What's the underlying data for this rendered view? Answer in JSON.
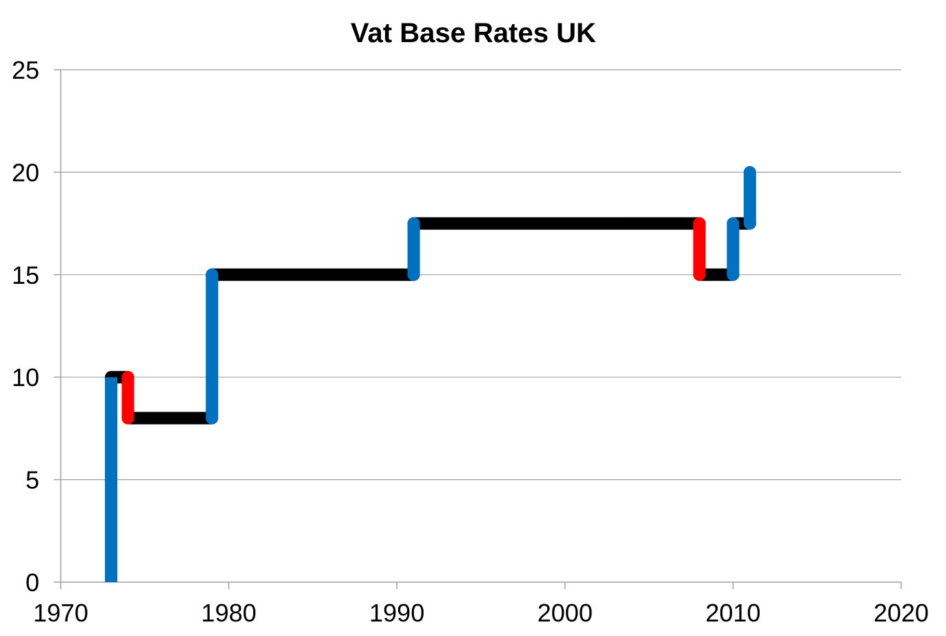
{
  "chart_data": {
    "type": "line",
    "title": "Vat Base Rates UK",
    "xlabel": "",
    "ylabel": "",
    "xlim": [
      1970,
      2020
    ],
    "ylim": [
      0,
      25
    ],
    "x_ticks": [
      1970,
      1980,
      1990,
      2000,
      2010,
      2020
    ],
    "y_ticks": [
      0,
      5,
      10,
      15,
      20,
      25
    ],
    "x_tick_labels": [
      "1970",
      "1980",
      "1990",
      "2000",
      "2010",
      "2020"
    ],
    "y_tick_labels": [
      "0",
      "5",
      "10",
      "15",
      "20",
      "25"
    ],
    "grid": "horizontal",
    "legend": "none",
    "colors": {
      "increase": "#0070C0",
      "decrease": "#FF0000",
      "constant": "#000000",
      "gridline": "#A0A0A0",
      "axis": "#A0A0A0"
    },
    "segments": [
      {
        "kind": "increase",
        "x": [
          1973,
          1973
        ],
        "y": [
          0,
          10
        ]
      },
      {
        "kind": "constant",
        "x": [
          1973,
          1974
        ],
        "y": [
          10,
          10
        ]
      },
      {
        "kind": "decrease",
        "x": [
          1974,
          1974
        ],
        "y": [
          10,
          8
        ]
      },
      {
        "kind": "constant",
        "x": [
          1974,
          1979
        ],
        "y": [
          8,
          8
        ]
      },
      {
        "kind": "increase",
        "x": [
          1979,
          1979
        ],
        "y": [
          8,
          15
        ]
      },
      {
        "kind": "constant",
        "x": [
          1979,
          1991
        ],
        "y": [
          15,
          15
        ]
      },
      {
        "kind": "increase",
        "x": [
          1991,
          1991
        ],
        "y": [
          15,
          17.5
        ]
      },
      {
        "kind": "constant",
        "x": [
          1991,
          2008
        ],
        "y": [
          17.5,
          17.5
        ]
      },
      {
        "kind": "decrease",
        "x": [
          2008,
          2008
        ],
        "y": [
          17.5,
          15
        ]
      },
      {
        "kind": "constant",
        "x": [
          2008,
          2010
        ],
        "y": [
          15,
          15
        ]
      },
      {
        "kind": "increase",
        "x": [
          2010,
          2010
        ],
        "y": [
          15,
          17.5
        ]
      },
      {
        "kind": "constant",
        "x": [
          2010,
          2011
        ],
        "y": [
          17.5,
          17.5
        ]
      },
      {
        "kind": "increase",
        "x": [
          2011,
          2011
        ],
        "y": [
          17.5,
          20
        ]
      }
    ]
  }
}
